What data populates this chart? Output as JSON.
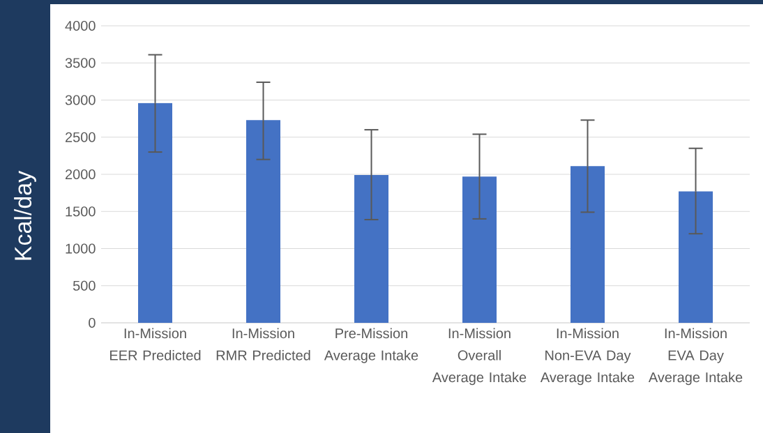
{
  "chart_data": {
    "type": "bar",
    "ylabel": "Kcal/day",
    "categories": [
      "In-Mission EER Predicted",
      "In-Mission RMR Predicted",
      "Pre-Mission Average Intake",
      "In-Mission Overall Average Intake",
      "In-Mission Non-EVA Day Average Intake",
      "In-Mission EVA Day Average Intake"
    ],
    "values": [
      2960,
      2730,
      1990,
      1970,
      2110,
      1770
    ],
    "errors": [
      [
        2300,
        3610
      ],
      [
        2200,
        3240
      ],
      [
        1390,
        2600
      ],
      [
        1400,
        2540
      ],
      [
        1490,
        2730
      ],
      [
        1200,
        2350
      ]
    ],
    "color": "#4472c4",
    "ylim": [
      0,
      4000
    ],
    "yticks": [
      0,
      500,
      1000,
      1500,
      2000,
      2500,
      3000,
      3500,
      4000
    ],
    "grid": "y"
  }
}
